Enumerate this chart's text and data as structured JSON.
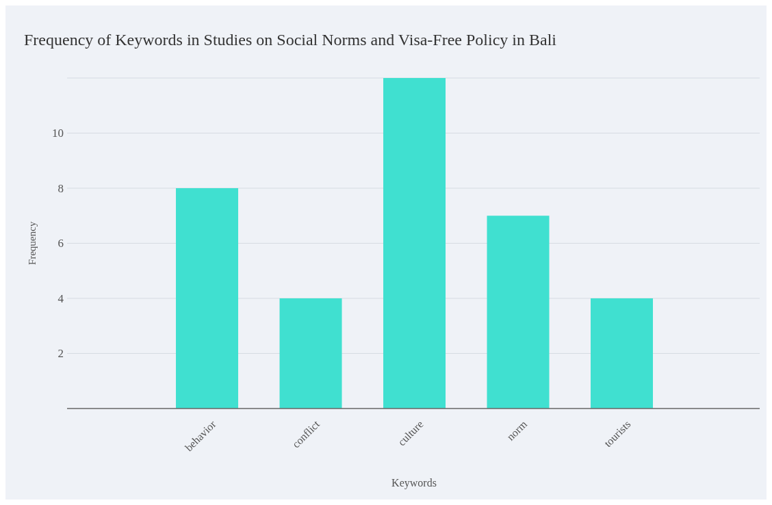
{
  "chart_data": {
    "type": "bar",
    "title": "Frequency of Keywords in Studies on Social Norms and Visa-Free  Policy in Bali",
    "xlabel": "Keywords",
    "ylabel": "Frequency",
    "categories": [
      "behavior",
      "conflict",
      "culture",
      "norm",
      "tourists"
    ],
    "values": [
      8,
      4,
      12,
      7,
      4
    ],
    "color": "#40e0d0",
    "ylim": [
      0,
      12
    ],
    "yticks": [
      2,
      4,
      6,
      8,
      10,
      {
        "value": 12,
        "label": null
      }
    ],
    "grid": "y"
  }
}
